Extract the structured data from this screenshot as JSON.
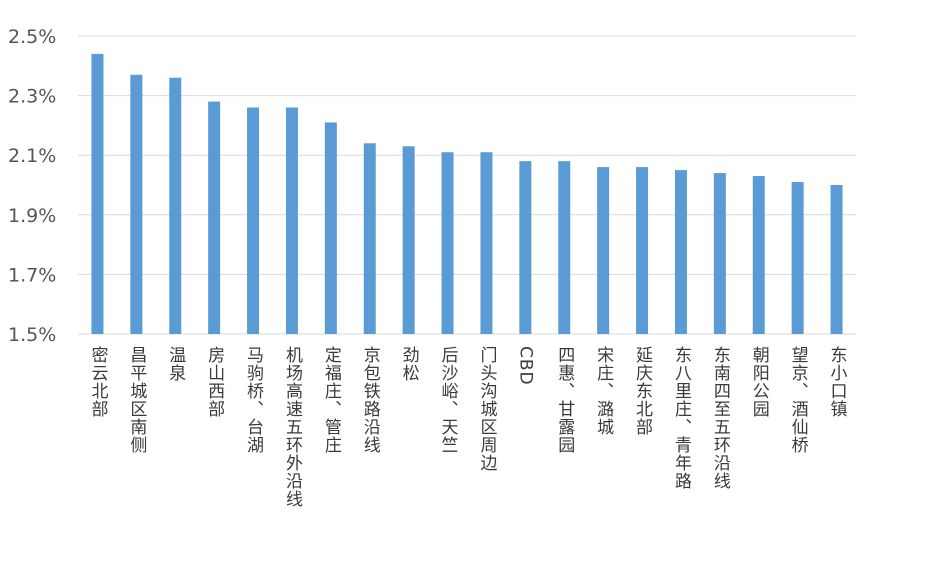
{
  "chart_data": {
    "type": "bar",
    "title": "",
    "xlabel": "",
    "ylabel": "",
    "categories": [
      "密云北部",
      "昌平城区南侧",
      "温泉",
      "房山西部",
      "马驹桥、台湖",
      "机场高速五环外沿线",
      "定福庄、管庄",
      "京包铁路沿线",
      "劲松",
      "后沙峪、天竺",
      "门头沟城区周边",
      "CBD",
      "四惠、甘露园",
      "宋庄、潞城",
      "延庆东北部",
      "东八里庄、青年路",
      "东南四至五环沿线",
      "朝阳公园",
      "望京、酒仙桥",
      "东小口镇"
    ],
    "values": [
      2.44,
      2.37,
      2.36,
      2.28,
      2.26,
      2.26,
      2.21,
      2.14,
      2.13,
      2.11,
      2.11,
      2.08,
      2.08,
      2.06,
      2.06,
      2.05,
      2.04,
      2.03,
      2.01,
      2.0
    ],
    "value_unit": "%",
    "ylim": [
      1.5,
      2.5
    ],
    "yticks": [
      "1.5%",
      "1.7%",
      "1.9%",
      "2.1%",
      "2.3%",
      "2.5%"
    ],
    "ytick_values": [
      1.5,
      1.7,
      1.9,
      2.1,
      2.3,
      2.5
    ],
    "grid": true,
    "legend": "none",
    "bar_color": "#5b9bd5",
    "grid_color": "#d9d9d9"
  }
}
